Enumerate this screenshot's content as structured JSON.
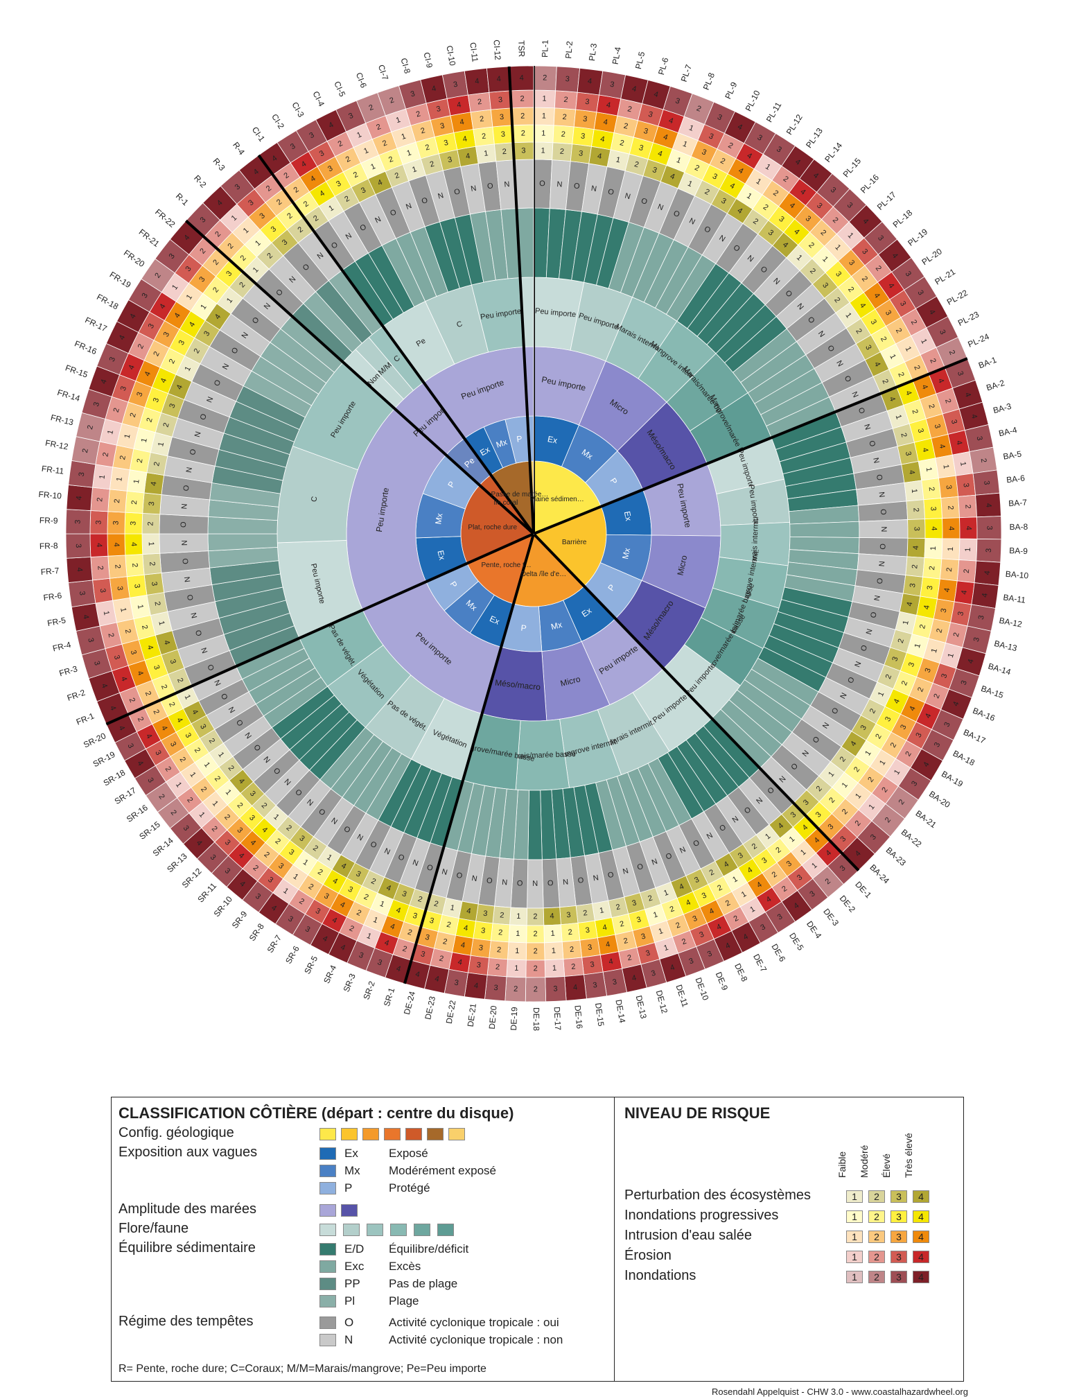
{
  "wheel": {
    "center_labels": [
      {
        "label": "Plaine sédimen-taire",
        "color": "#fde84a"
      },
      {
        "label": "Barrière",
        "color": "#fbc42c"
      },
      {
        "label": "Delta /île d'est. peu élevée",
        "color": "#f49a2a"
      },
      {
        "label": "Pente, roche tendre",
        "color": "#e9762b"
      },
      {
        "label": "Plat, roche dure",
        "color": "#cf5a29"
      },
      {
        "label": "Île coral",
        "color": "#a6692a"
      },
      {
        "label": "Passe de marée/Langue de sable/Embouchure",
        "color": "#f9d06b"
      }
    ],
    "groups": [
      {
        "name": "PL",
        "count": 24,
        "start_deg": 0,
        "end_deg": 68,
        "geo": "#fde84a",
        "exposure": [
          "Ex",
          "Mx",
          "P"
        ],
        "tide": [
          "Peu importe",
          "Micro",
          "Méso/macro"
        ],
        "flora": [
          "Peu importe",
          "Peu importe",
          "Marais intermit.",
          "Mangrove intermit.",
          "Marais/marée basse",
          "Mangrove/marée basse"
        ],
        "sediment": [
          "E/D",
          "Exc"
        ],
        "storm": [
          "O",
          "N"
        ]
      },
      {
        "name": "BA",
        "count": 24,
        "start_deg": 68,
        "end_deg": 136,
        "geo": "#fbc42c",
        "exposure": [
          "Ex",
          "Mx",
          "P"
        ],
        "tide": [
          "Peu importe",
          "Micro",
          "Méso/macro"
        ],
        "flora": [
          "Peu importe",
          "Peu importe",
          "Marais intermit.",
          "Mangrove intermit.",
          "Marais/marée basse",
          "Mangrove/marée basse",
          "Peu importe"
        ],
        "sediment": [
          "E/D",
          "Exc"
        ],
        "storm": [
          "O",
          "N"
        ]
      },
      {
        "name": "DE",
        "count": 24,
        "start_deg": 136,
        "end_deg": 196,
        "geo": "#f49a2a",
        "exposure": [
          "Ex",
          "Mx",
          "P"
        ],
        "tide": [
          "Peu importe",
          "Micro",
          "Méso/macro"
        ],
        "flora": [
          "Peu importe",
          "Marais intermit.",
          "Mangrove intermit.",
          "Marais/marée basse",
          "Mangrove/marée basse"
        ],
        "sediment": [
          "E/D",
          "Exc"
        ],
        "storm": [
          "O",
          "N"
        ]
      },
      {
        "name": "SR",
        "count": 20,
        "start_deg": 196,
        "end_deg": 246,
        "geo": "#e9762b",
        "exposure": [
          "Ex",
          "Mx",
          "P"
        ],
        "tide": [
          "Peu importe"
        ],
        "flora": [
          "Végétation",
          "Pas de végét.",
          "Végétation",
          "Pas de végét."
        ],
        "sediment": [
          "E/D",
          "Exc"
        ],
        "storm": [
          "O",
          "N"
        ]
      },
      {
        "name": "FR",
        "count": 22,
        "start_deg": 246,
        "end_deg": 312,
        "geo": "#cf5a29",
        "exposure": [
          "Ex",
          "Mx",
          "P"
        ],
        "tide": [
          "Peu importe"
        ],
        "flora": [
          "Peu importe",
          "C",
          "Peu importe"
        ],
        "sediment": [
          "PP",
          "Pl"
        ],
        "storm": [
          "O",
          "N"
        ]
      },
      {
        "name": "R",
        "count": 4,
        "start_deg": 312,
        "end_deg": 324,
        "geo": "#cf5a29",
        "exposure": [
          "Pe"
        ],
        "tide": [
          "Peu importe"
        ],
        "flora": [
          "Non",
          "M/M",
          "C"
        ],
        "sediment": [
          "PP",
          "Pl"
        ],
        "storm": [
          "O",
          "N"
        ]
      },
      {
        "name": "CI",
        "count": 12,
        "start_deg": 324,
        "end_deg": 357,
        "geo": "#a6692a",
        "exposure": [
          "Ex",
          "Mx",
          "P"
        ],
        "tide": [
          "Peu importe"
        ],
        "flora": [
          "Pe",
          "C",
          "Peu importe"
        ],
        "sediment": [
          "E/D",
          "Exc"
        ],
        "storm": [
          "O",
          "N"
        ]
      },
      {
        "name": "TSR",
        "count": 1,
        "start_deg": 357,
        "end_deg": 360,
        "geo": "#f9d06b",
        "exposure": [
          ""
        ],
        "tide": [
          ""
        ],
        "flora": [
          ""
        ],
        "sediment": [
          ""
        ],
        "storm": [
          ""
        ]
      }
    ],
    "risk_values": {
      "ecosystem": [
        1,
        2,
        3,
        4,
        1,
        2,
        3,
        4,
        1,
        2,
        3,
        4,
        2,
        3,
        4,
        1,
        2,
        3,
        2,
        1,
        2,
        3,
        4,
        2
      ],
      "gradual": [
        1,
        2,
        3,
        4,
        2,
        3,
        4,
        1,
        2,
        3,
        4,
        1,
        2,
        3,
        4,
        2,
        1,
        3,
        2,
        4,
        3,
        2,
        1,
        2
      ],
      "salt": [
        1,
        2,
        3,
        4,
        2,
        3,
        4,
        1,
        3,
        2,
        4,
        1,
        2,
        4,
        3,
        2,
        1,
        3,
        2,
        4,
        3,
        2,
        1,
        2
      ],
      "erosion": [
        1,
        2,
        3,
        4,
        2,
        3,
        4,
        1,
        3,
        2,
        4,
        1,
        2,
        4,
        3,
        2,
        1,
        3,
        2,
        4,
        3,
        2,
        1,
        2
      ],
      "flooding": [
        2,
        3,
        4,
        3,
        4,
        4,
        3,
        2,
        3,
        4,
        3,
        3,
        4,
        4,
        3,
        3,
        4,
        3,
        4,
        3,
        3,
        4,
        3,
        2
      ]
    },
    "colors": {
      "exposure": {
        "Ex": "#1f6bb5",
        "Mx": "#4a80c4",
        "P": "#8fb0de",
        "Pe": "#6a86c0"
      },
      "tide": {
        "Peu importe": "#a9a6d8",
        "Micro": "#8b89cc",
        "Méso/macro": "#5753a8"
      },
      "flora": [
        "#c7dcd9",
        "#b3cfcb",
        "#9cc4bf",
        "#88b9b2",
        "#6ea79f",
        "#5e9c94"
      ],
      "sediment": {
        "E/D": "#357b6f",
        "Exc": "#7fa9a1",
        "PP": "#5d8c84",
        "Pl": "#8aafa8"
      },
      "storm": {
        "O": "#9a9a9a",
        "N": "#c9c9c9"
      },
      "risk_ecosystem": [
        "#efeccb",
        "#d9d49b",
        "#c9bf5a",
        "#b2a733"
      ],
      "risk_gradual": [
        "#fffbc9",
        "#fff58a",
        "#fff03f",
        "#f5e600"
      ],
      "risk_salt": [
        "#fde2bd",
        "#fbc97f",
        "#f6a640",
        "#ef8a0c"
      ],
      "risk_erosion": [
        "#f3cfcb",
        "#e4968f",
        "#d25b53",
        "#c8282a"
      ],
      "risk_flooding": [
        "#e0bfc0",
        "#bf8588",
        "#9e4e55",
        "#7e2028"
      ]
    }
  },
  "legend": {
    "title": "CLASSIFICATION CÔTIÈRE (départ : centre du disque)",
    "geo_label": "Config. géologique",
    "geo_colors": [
      "#fde84a",
      "#fbc42c",
      "#f49a2a",
      "#e9762b",
      "#cf5a29",
      "#a6692a",
      "#f9d06b"
    ],
    "wave_label": "Exposition aux vagues",
    "wave_items": [
      {
        "code": "Ex",
        "desc": "Exposé",
        "color": "#1f6bb5"
      },
      {
        "code": "Mx",
        "desc": "Modérément exposé",
        "color": "#4a80c4"
      },
      {
        "code": "P",
        "desc": "Protégé",
        "color": "#8fb0de"
      }
    ],
    "tide_label": "Amplitude des marées",
    "tide_colors": [
      "#a9a6d8",
      "#5753a8"
    ],
    "flora_label": "Flore/faune",
    "flora_colors": [
      "#c7dcd9",
      "#b3cfcb",
      "#9cc4bf",
      "#88b9b2",
      "#6ea79f",
      "#5e9c94"
    ],
    "sediment_label": "Équilibre sédimentaire",
    "sediment_items": [
      {
        "code": "E/D",
        "desc": "Équilibre/déficit",
        "color": "#357b6f"
      },
      {
        "code": "Exc",
        "desc": "Excès",
        "color": "#7fa9a1"
      },
      {
        "code": "PP",
        "desc": "Pas de plage",
        "color": "#5d8c84"
      },
      {
        "code": "Pl",
        "desc": "Plage",
        "color": "#8aafa8"
      }
    ],
    "storm_label": "Régime des tempêtes",
    "storm_items": [
      {
        "code": "O",
        "desc": "Activité cyclonique tropicale : oui",
        "color": "#9a9a9a"
      },
      {
        "code": "N",
        "desc": "Activité cyclonique tropicale : non",
        "color": "#c9c9c9"
      }
    ],
    "footnote": "R= Pente, roche dure;   C=Coraux;   M/M=Marais/mangrove;   Pe=Peu importe",
    "risk_title": "NIVEAU DE RISQUE",
    "risk_levels": [
      "Faible",
      "Modéré",
      "Élevé",
      "Très élevé"
    ],
    "risk_rows": [
      {
        "label": "Perturbation des écosystèmes",
        "key": "risk_ecosystem"
      },
      {
        "label": "Inondations progressives",
        "key": "risk_gradual"
      },
      {
        "label": "Intrusion d'eau salée",
        "key": "risk_salt"
      },
      {
        "label": "Érosion",
        "key": "risk_erosion"
      },
      {
        "label": "Inondations",
        "key": "risk_flooding"
      }
    ]
  },
  "credit": "Rosendahl Appelquist - CHW 3.0 - www.coastalhazardwheel.org"
}
